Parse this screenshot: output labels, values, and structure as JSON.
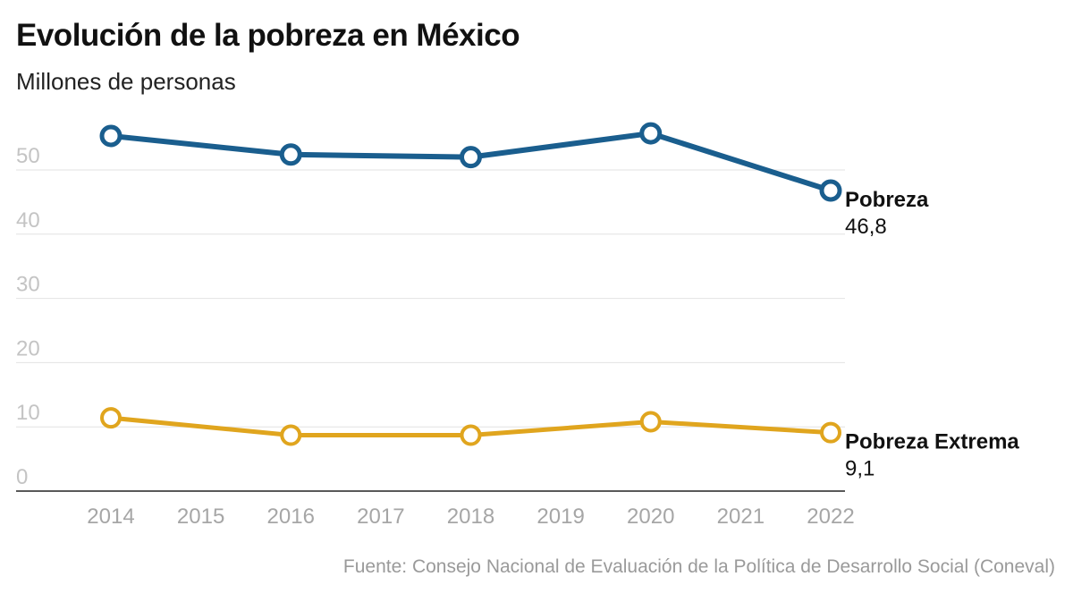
{
  "chart_data": {
    "type": "line",
    "title": "Evolución de la pobreza en México",
    "subtitle": "Millones de personas",
    "source": "Fuente: Consejo Nacional de Evaluación de la Política de Desarrollo Social (Coneval)",
    "x_ticks": [
      "2014",
      "2015",
      "2016",
      "2017",
      "2018",
      "2019",
      "2020",
      "2021",
      "2022"
    ],
    "y_ticks": [
      "0",
      "10",
      "20",
      "30",
      "40",
      "50"
    ],
    "y_tick_values": [
      0,
      10,
      20,
      30,
      40,
      50
    ],
    "ylim": [
      0,
      57
    ],
    "xlim": [
      2014,
      2022
    ],
    "grid": true,
    "series": [
      {
        "name": "Pobreza",
        "color": "#1a5e8e",
        "x": [
          2014,
          2016,
          2018,
          2020,
          2022
        ],
        "values": [
          55.3,
          52.4,
          52.0,
          55.7,
          46.8
        ],
        "end_label": "Pobreza",
        "end_value": "46,8"
      },
      {
        "name": "Pobreza Extrema",
        "color": "#e0a51e",
        "x": [
          2014,
          2016,
          2018,
          2020,
          2022
        ],
        "values": [
          11.4,
          8.7,
          8.7,
          10.8,
          9.1
        ],
        "end_label": "Pobreza Extrema",
        "end_value": "9,1"
      }
    ]
  }
}
